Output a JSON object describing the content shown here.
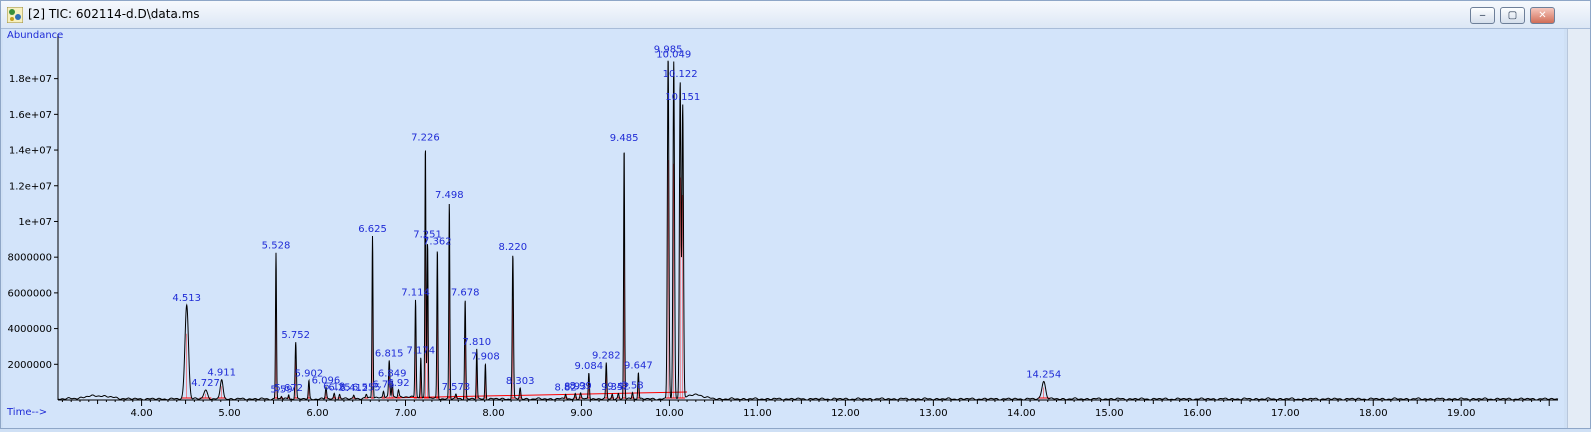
{
  "window": {
    "title": "[2] TIC: 602114-d.D\\data.ms",
    "icon": "chromatogram-app-icon",
    "buttons": {
      "minimize": "minimize-icon",
      "restore": "restore-icon",
      "close": "close-icon"
    }
  },
  "chart_data": {
    "type": "line",
    "ylabel": "Abundance",
    "xlabel": "Time-->",
    "xlim": [
      3.05,
      20.1
    ],
    "ylim": [
      0,
      20500000.0
    ],
    "x_ticks": [
      4,
      5,
      6,
      7,
      8,
      9,
      10,
      11,
      12,
      13,
      14,
      15,
      16,
      17,
      18,
      19
    ],
    "x_tick_labels": [
      "4.00",
      "5.00",
      "6.00",
      "7.00",
      "8.00",
      "9.00",
      "10.00",
      "11.00",
      "12.00",
      "13.00",
      "14.00",
      "15.00",
      "16.00",
      "17.00",
      "18.00",
      "19.00"
    ],
    "y_ticks": [
      2000000,
      4000000,
      6000000,
      8000000,
      10000000,
      12000000,
      14000000,
      16000000,
      18000000
    ],
    "y_tick_labels": [
      "2000000",
      "4000000",
      "6000000",
      "8000000",
      "1e+07",
      "1.2e+07",
      "1.4e+07",
      "1.6e+07",
      "1.8e+07"
    ],
    "grid": false,
    "colors": {
      "trace": "#000000",
      "baseline": "#ff0000",
      "labels": "#1f2bd6",
      "background": "#d3e4fa"
    },
    "peaks": [
      {
        "x": 4.513,
        "y": 5300000,
        "w": 0.028,
        "label": "4.513"
      },
      {
        "x": 4.727,
        "y": 500000,
        "w": 0.03,
        "label": "4.727"
      },
      {
        "x": 4.911,
        "y": 1100000,
        "w": 0.022,
        "label": "4.911"
      },
      {
        "x": 5.528,
        "y": 8200000,
        "w": 0.008,
        "label": "5.528"
      },
      {
        "x": 5.59,
        "y": 150000,
        "w": 0.008,
        "label": "5.59"
      },
      {
        "x": 5.672,
        "y": 250000,
        "w": 0.008,
        "label": "5.672"
      },
      {
        "x": 5.752,
        "y": 3200000,
        "w": 0.01,
        "label": "5.752"
      },
      {
        "x": 5.902,
        "y": 1000000,
        "w": 0.009,
        "label": "5.902"
      },
      {
        "x": 6.096,
        "y": 650000,
        "w": 0.01,
        "label": "6.096"
      },
      {
        "x": 6.19,
        "y": 300000,
        "w": 0.01,
        "label": "6.19"
      },
      {
        "x": 6.25,
        "y": 250000,
        "w": 0.01,
        "label": "6.25"
      },
      {
        "x": 6.412,
        "y": 200000,
        "w": 0.01,
        "label": "6.412"
      },
      {
        "x": 6.555,
        "y": 200000,
        "w": 0.01,
        "label": "6.555"
      },
      {
        "x": 6.625,
        "y": 9100000,
        "w": 0.008,
        "label": "6.625"
      },
      {
        "x": 6.75,
        "y": 350000,
        "w": 0.01,
        "label": "6.75"
      },
      {
        "x": 6.815,
        "y": 2000000,
        "w": 0.01,
        "label": "6.815"
      },
      {
        "x": 6.849,
        "y": 900000,
        "w": 0.008,
        "label": "6.849"
      },
      {
        "x": 6.92,
        "y": 400000,
        "w": 0.01,
        "label": "6.92"
      },
      {
        "x": 7.114,
        "y": 5500000,
        "w": 0.009,
        "label": "7.114"
      },
      {
        "x": 7.174,
        "y": 2300000,
        "w": 0.008,
        "label": "7.174"
      },
      {
        "x": 7.226,
        "y": 14200000,
        "w": 0.008,
        "label": "7.226"
      },
      {
        "x": 7.251,
        "y": 8800000,
        "w": 0.008,
        "label": "7.251"
      },
      {
        "x": 7.362,
        "y": 8400000,
        "w": 0.008,
        "label": "7.362"
      },
      {
        "x": 7.498,
        "y": 11000000,
        "w": 0.008,
        "label": "7.498"
      },
      {
        "x": 7.573,
        "y": 250000,
        "w": 0.01,
        "label": "7.573"
      },
      {
        "x": 7.678,
        "y": 5600000,
        "w": 0.009,
        "label": "7.678"
      },
      {
        "x": 7.81,
        "y": 2800000,
        "w": 0.008,
        "label": "7.810"
      },
      {
        "x": 7.908,
        "y": 2000000,
        "w": 0.008,
        "label": "7.908"
      },
      {
        "x": 8.22,
        "y": 8100000,
        "w": 0.01,
        "label": "8.220"
      },
      {
        "x": 8.303,
        "y": 600000,
        "w": 0.01,
        "label": "8.303"
      },
      {
        "x": 8.82,
        "y": 300000,
        "w": 0.01,
        "label": "8.82"
      },
      {
        "x": 8.93,
        "y": 300000,
        "w": 0.01,
        "label": "8.93"
      },
      {
        "x": 8.99,
        "y": 300000,
        "w": 0.01,
        "label": "8.99"
      },
      {
        "x": 9.084,
        "y": 1500000,
        "w": 0.009,
        "label": "9.084"
      },
      {
        "x": 9.282,
        "y": 2000000,
        "w": 0.009,
        "label": "9.282"
      },
      {
        "x": 9.35,
        "y": 300000,
        "w": 0.01,
        "label": "9.35"
      },
      {
        "x": 9.42,
        "y": 300000,
        "w": 0.01,
        "label": "9.42"
      },
      {
        "x": 9.485,
        "y": 14200000,
        "w": 0.008,
        "label": "9.485"
      },
      {
        "x": 9.58,
        "y": 400000,
        "w": 0.01,
        "label": "9.58"
      },
      {
        "x": 9.647,
        "y": 1500000,
        "w": 0.009,
        "label": "9.647"
      },
      {
        "x": 9.985,
        "y": 19200000,
        "w": 0.012,
        "label": "9.985"
      },
      {
        "x": 10.049,
        "y": 18900000,
        "w": 0.012,
        "label": "10.049"
      },
      {
        "x": 10.122,
        "y": 17800000,
        "w": 0.012,
        "label": "10.122"
      },
      {
        "x": 10.151,
        "y": 16400000,
        "w": 0.012,
        "label": "10.151"
      },
      {
        "x": 14.254,
        "y": 1000000,
        "w": 0.03,
        "label": "14.254"
      }
    ]
  }
}
